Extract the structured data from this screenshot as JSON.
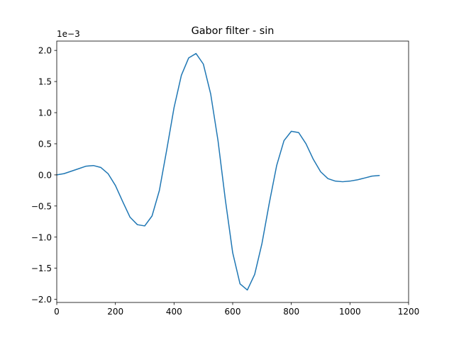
{
  "chart_data": {
    "type": "line",
    "title": "Gabor filter - sin",
    "xlabel": "",
    "ylabel": "",
    "y_offset_label": "1e−3",
    "xlim": [
      0,
      1200
    ],
    "ylim": [
      -2.05,
      2.15
    ],
    "x_ticks": [
      0,
      200,
      400,
      600,
      800,
      1000,
      1200
    ],
    "x_tick_labels": [
      "0",
      "200",
      "400",
      "600",
      "800",
      "1000",
      "1200"
    ],
    "y_ticks": [
      -2.0,
      -1.5,
      -1.0,
      -0.5,
      0.0,
      0.5,
      1.0,
      1.5,
      2.0
    ],
    "y_tick_labels": [
      "−2.0",
      "−1.5",
      "−1.0",
      "−0.5",
      "0.0",
      "0.5",
      "1.0",
      "1.5",
      "2.0"
    ],
    "grid": false,
    "series": [
      {
        "color": "#1f77b4",
        "x": [
          0,
          25,
          50,
          75,
          100,
          125,
          150,
          175,
          200,
          225,
          250,
          275,
          300,
          325,
          350,
          375,
          400,
          425,
          450,
          475,
          500,
          525,
          550,
          575,
          600,
          625,
          650,
          675,
          700,
          725,
          750,
          775,
          800,
          825,
          850,
          875,
          900,
          925,
          950,
          975,
          1000,
          1025,
          1050,
          1075,
          1100
        ],
        "y": [
          0.0,
          0.02,
          0.06,
          0.1,
          0.14,
          0.15,
          0.12,
          0.02,
          -0.17,
          -0.43,
          -0.68,
          -0.8,
          -0.82,
          -0.66,
          -0.25,
          0.4,
          1.08,
          1.6,
          1.88,
          1.95,
          1.78,
          1.3,
          0.55,
          -0.4,
          -1.25,
          -1.75,
          -1.85,
          -1.6,
          -1.1,
          -0.45,
          0.15,
          0.55,
          0.7,
          0.68,
          0.5,
          0.25,
          0.05,
          -0.06,
          -0.1,
          -0.11,
          -0.1,
          -0.08,
          -0.05,
          -0.02,
          -0.01
        ]
      }
    ]
  }
}
